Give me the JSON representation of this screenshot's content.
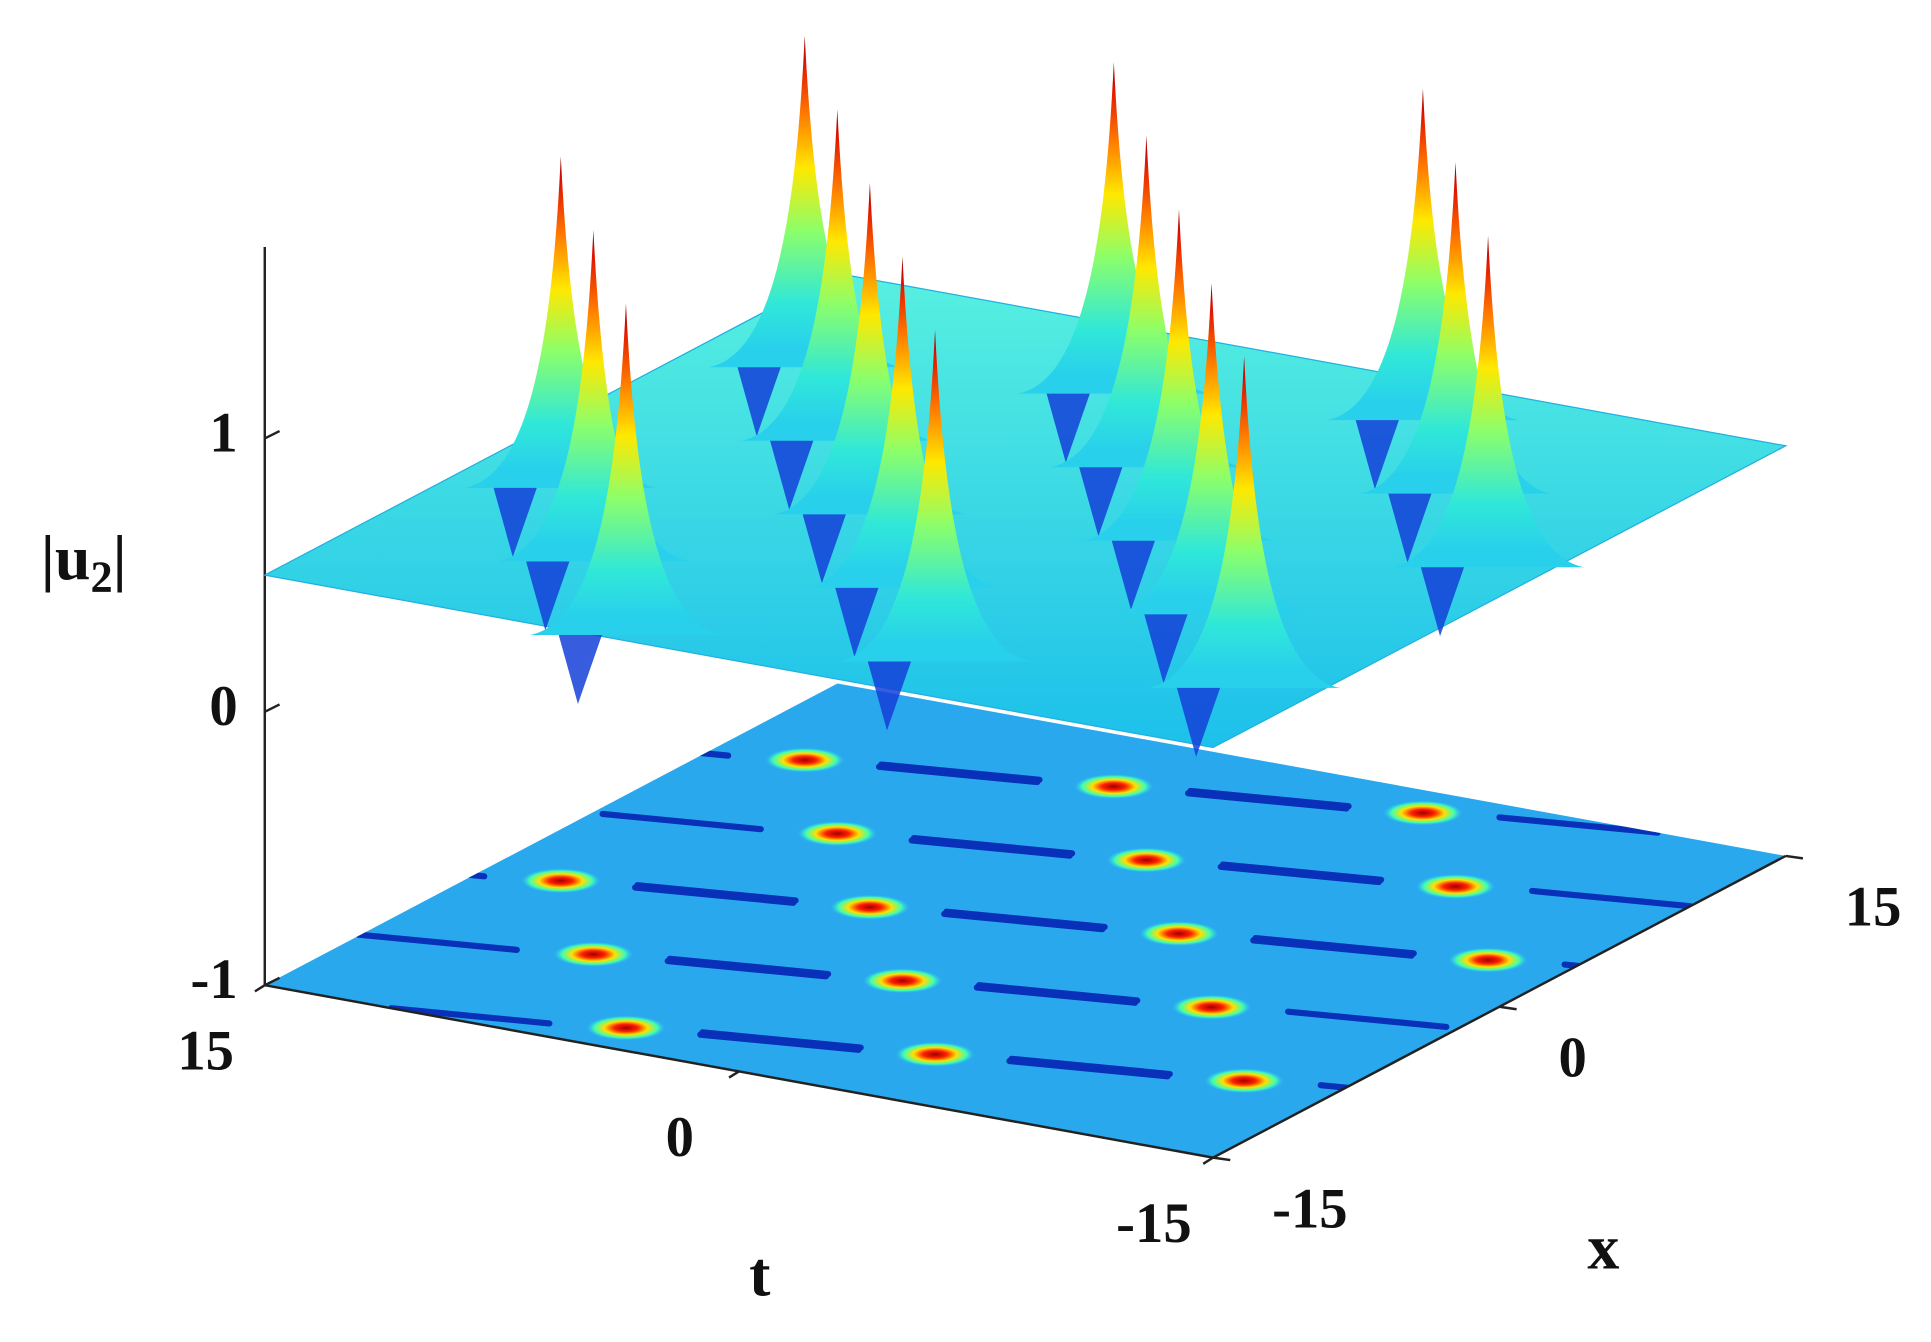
{
  "chart_data": {
    "type": "surface3d",
    "colormap": "jet",
    "zlabel": [
      "|u",
      "2",
      "|"
    ],
    "xlabel": "x",
    "ylabel": "t",
    "xlim": [
      -15,
      15
    ],
    "ylim": [
      -15,
      15
    ],
    "zlim": [
      -1,
      1.7
    ],
    "xticks": [
      -15,
      0,
      15
    ],
    "yticks": [
      -15,
      0,
      15
    ],
    "zticks": [
      -1,
      0,
      1
    ],
    "contour_plane": -1,
    "base_level": 0.5,
    "peaks": {
      "x": [
        -3.3,
        -1.1,
        1.1,
        3.3,
        3.9,
        6.1,
        8.3,
        8.9,
        11.1,
        13.3,
        -8.3,
        -6.1,
        -3.9,
        -13.3,
        -11.1,
        -8.9
      ],
      "y": [
        12.7,
        4.25,
        -4.2,
        -12.65,
        8.3,
        -0.15,
        -8.6,
        12.35,
        3.9,
        -4.55,
        8.65,
        0.2,
        -8.25,
        4.6,
        -3.85,
        -12.3
      ],
      "z": [
        1.65,
        1.65,
        1.65,
        1.65,
        1.65,
        1.65,
        1.65,
        1.65,
        1.65,
        1.65,
        1.65,
        1.65,
        1.65,
        1.65,
        1.65,
        1.65
      ]
    }
  }
}
